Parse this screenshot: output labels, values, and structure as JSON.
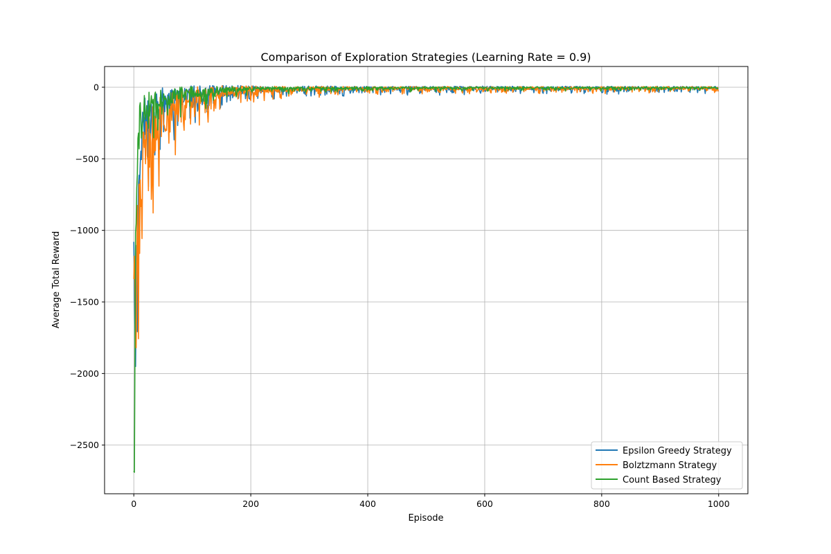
{
  "chart_data": {
    "type": "line",
    "title": "Comparison of Exploration Strategies (Learning Rate = 0.9)",
    "xlabel": "Episode",
    "ylabel": "Average Total Reward",
    "xlim": [
      -50,
      1050
    ],
    "ylim": [
      -2840,
      145
    ],
    "x_ticks": [
      0,
      200,
      400,
      600,
      800,
      1000
    ],
    "x_tick_labels": [
      "0",
      "200",
      "400",
      "600",
      "800",
      "1000"
    ],
    "y_ticks": [
      0,
      -500,
      -1000,
      -1500,
      -2000,
      -2500
    ],
    "y_tick_labels": [
      "0",
      "−500",
      "−1000",
      "−1500",
      "−2000",
      "−2500"
    ],
    "grid": true,
    "legend_position": "bottom-right",
    "x_range": [
      0,
      999
    ],
    "series": [
      {
        "name": "Epsilon Greedy Strategy",
        "color": "#1f77b4",
        "seed": 11,
        "envelope": [
          [
            0,
            -1080
          ],
          [
            1,
            -1400
          ],
          [
            2,
            -1700
          ],
          [
            3,
            -1940
          ],
          [
            4,
            -1500
          ],
          [
            5,
            -1200
          ],
          [
            6,
            -1550
          ],
          [
            7,
            -1000
          ],
          [
            8,
            -650
          ],
          [
            10,
            -480
          ],
          [
            12,
            -380
          ],
          [
            15,
            -280
          ],
          [
            20,
            -200
          ],
          [
            30,
            -140
          ],
          [
            50,
            -85
          ],
          [
            75,
            -55
          ],
          [
            100,
            -35
          ],
          [
            150,
            -18
          ],
          [
            200,
            -12
          ],
          [
            300,
            -7
          ],
          [
            500,
            -5
          ],
          [
            999,
            -4
          ]
        ],
        "noise": [
          [
            0,
            120
          ],
          [
            10,
            200
          ],
          [
            20,
            160
          ],
          [
            40,
            110
          ],
          [
            80,
            70
          ],
          [
            150,
            40
          ],
          [
            220,
            20
          ],
          [
            400,
            14
          ],
          [
            999,
            12
          ]
        ]
      },
      {
        "name": "Bolztzmann Strategy",
        "color": "#ff7f0e",
        "seed": 23,
        "envelope": [
          [
            0,
            -1340
          ],
          [
            1,
            -1180
          ],
          [
            2,
            -1450
          ],
          [
            3,
            -1300
          ],
          [
            4,
            -1730
          ],
          [
            5,
            -1200
          ],
          [
            6,
            -1000
          ],
          [
            8,
            -900
          ],
          [
            10,
            -760
          ],
          [
            12,
            -650
          ],
          [
            15,
            -540
          ],
          [
            20,
            -420
          ],
          [
            25,
            -340
          ],
          [
            30,
            -300
          ],
          [
            38,
            -260
          ],
          [
            50,
            -170
          ],
          [
            75,
            -100
          ],
          [
            100,
            -60
          ],
          [
            150,
            -30
          ],
          [
            200,
            -15
          ],
          [
            300,
            -8
          ],
          [
            500,
            -5
          ],
          [
            999,
            -4
          ]
        ],
        "noise": [
          [
            0,
            120
          ],
          [
            10,
            280
          ],
          [
            20,
            240
          ],
          [
            40,
            170
          ],
          [
            80,
            90
          ],
          [
            150,
            45
          ],
          [
            220,
            22
          ],
          [
            400,
            12
          ],
          [
            999,
            10
          ]
        ]
      },
      {
        "name": "Count Based Strategy",
        "color": "#2ca02c",
        "seed": 37,
        "envelope": [
          [
            0,
            -2680
          ],
          [
            1,
            -2690
          ],
          [
            2,
            -1800
          ],
          [
            3,
            -1000
          ],
          [
            4,
            -700
          ],
          [
            5,
            -540
          ],
          [
            6,
            -450
          ],
          [
            8,
            -340
          ],
          [
            10,
            -270
          ],
          [
            15,
            -180
          ],
          [
            20,
            -140
          ],
          [
            30,
            -100
          ],
          [
            50,
            -70
          ],
          [
            75,
            -45
          ],
          [
            100,
            -30
          ],
          [
            150,
            -15
          ],
          [
            200,
            -8
          ],
          [
            300,
            -5
          ],
          [
            500,
            -3
          ],
          [
            999,
            -2
          ]
        ],
        "noise": [
          [
            0,
            20
          ],
          [
            3,
            250
          ],
          [
            8,
            200
          ],
          [
            20,
            100
          ],
          [
            50,
            60
          ],
          [
            100,
            40
          ],
          [
            150,
            28
          ],
          [
            200,
            14
          ],
          [
            400,
            8
          ],
          [
            999,
            6
          ]
        ]
      }
    ]
  }
}
